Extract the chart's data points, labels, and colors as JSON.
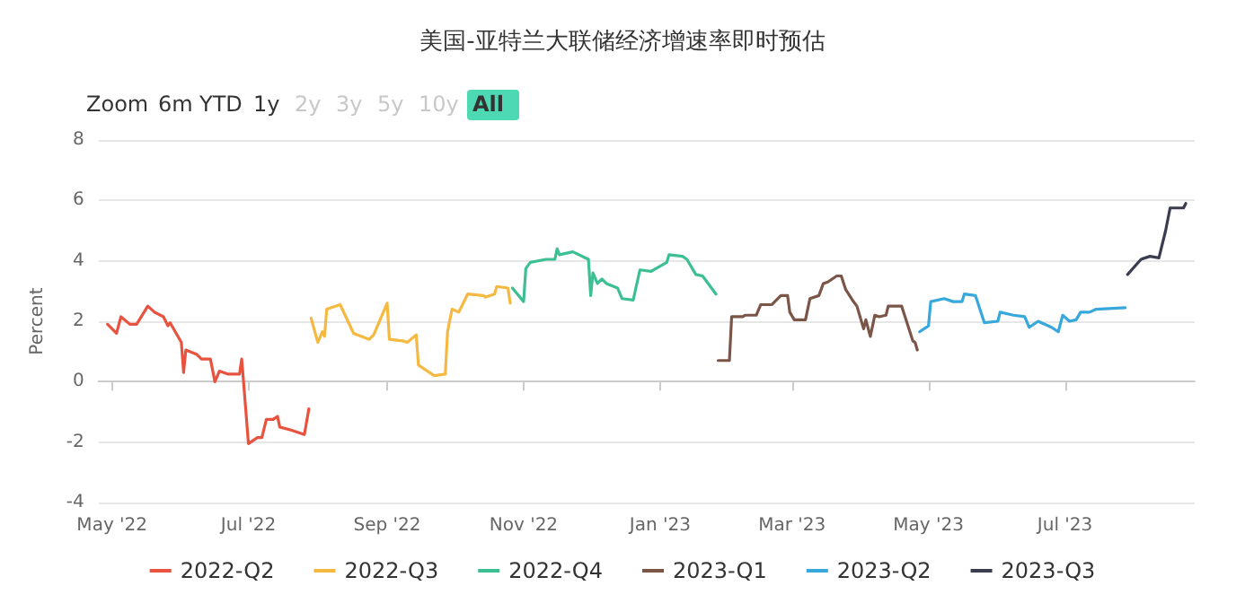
{
  "chart_data": {
    "type": "line",
    "title": "美国-亚特兰大联储经济增速率即时预估",
    "ylabel": "Percent",
    "annotations": [
      "Zoom",
      "6m",
      "YTD",
      "1y",
      "2y",
      "3y",
      "5y",
      "10y",
      "All"
    ],
    "xlim": [
      "2022-04-25",
      "2023-08-28"
    ],
    "xticks": [
      {
        "value": "2022-05-01",
        "label": "May '22"
      },
      {
        "value": "2022-07-01",
        "label": "Jul '22"
      },
      {
        "value": "2022-09-01",
        "label": "Sep '22"
      },
      {
        "value": "2022-11-01",
        "label": "Nov '22"
      },
      {
        "value": "2023-01-01",
        "label": "Jan '23"
      },
      {
        "value": "2023-03-01",
        "label": "Mar '23"
      },
      {
        "value": "2023-05-01",
        "label": "May '23"
      },
      {
        "value": "2023-07-01",
        "label": "Jul '23"
      }
    ],
    "ylim": [
      -4,
      8
    ],
    "yticks": [
      -4,
      -2,
      0,
      2,
      4,
      6,
      8
    ],
    "grid": "y",
    "legend": "bottom",
    "marker": "none",
    "line_style": "solid",
    "series": [
      {
        "name": "2022-Q2",
        "color": "#e8533f",
        "x": [
          "2022-04-29",
          "2022-05-03",
          "2022-05-05",
          "2022-05-09",
          "2022-05-12",
          "2022-05-17",
          "2022-05-20",
          "2022-05-24",
          "2022-05-26",
          "2022-05-27",
          "2022-06-01",
          "2022-06-02",
          "2022-06-03",
          "2022-06-08",
          "2022-06-10",
          "2022-06-14",
          "2022-06-16",
          "2022-06-18",
          "2022-06-22",
          "2022-06-27",
          "2022-06-28",
          "2022-07-01",
          "2022-07-05",
          "2022-07-07",
          "2022-07-09",
          "2022-07-12",
          "2022-07-14",
          "2022-07-15",
          "2022-07-20",
          "2022-07-26",
          "2022-07-28"
        ],
        "values": [
          1.9,
          1.6,
          2.15,
          1.9,
          1.9,
          2.5,
          2.3,
          2.15,
          1.85,
          1.95,
          1.3,
          0.3,
          1.05,
          0.9,
          0.75,
          0.75,
          0.0,
          0.35,
          0.25,
          0.25,
          0.75,
          -2.05,
          -1.85,
          -1.85,
          -1.25,
          -1.25,
          -1.15,
          -1.5,
          -1.6,
          -1.75,
          -0.9
        ]
      },
      {
        "name": "2022-Q3",
        "color": "#f5b942",
        "x": [
          "2022-07-29",
          "2022-08-01",
          "2022-08-03",
          "2022-08-04",
          "2022-08-05",
          "2022-08-11",
          "2022-08-17",
          "2022-08-24",
          "2022-08-26",
          "2022-09-01",
          "2022-09-02",
          "2022-09-08",
          "2022-09-10",
          "2022-09-14",
          "2022-09-15",
          "2022-09-22",
          "2022-09-27",
          "2022-09-28",
          "2022-09-30",
          "2022-10-03",
          "2022-10-07",
          "2022-10-14",
          "2022-10-15",
          "2022-10-19",
          "2022-10-20",
          "2022-10-25",
          "2022-10-26"
        ],
        "values": [
          2.1,
          1.3,
          1.65,
          1.5,
          2.4,
          2.55,
          1.6,
          1.4,
          1.55,
          2.6,
          1.4,
          1.35,
          1.3,
          1.55,
          0.55,
          0.2,
          0.25,
          1.65,
          2.4,
          2.3,
          2.9,
          2.85,
          2.8,
          2.9,
          3.15,
          3.1,
          2.6
        ]
      },
      {
        "name": "2022-Q4",
        "color": "#3dbf94",
        "x": [
          "2022-10-27",
          "2022-11-01",
          "2022-11-02",
          "2022-11-04",
          "2022-11-11",
          "2022-11-15",
          "2022-11-16",
          "2022-11-17",
          "2022-11-23",
          "2022-11-30",
          "2022-12-01",
          "2022-12-02",
          "2022-12-04",
          "2022-12-06",
          "2022-12-08",
          "2022-12-13",
          "2022-12-15",
          "2022-12-20",
          "2022-12-23",
          "2022-12-28",
          "2023-01-04",
          "2023-01-05",
          "2023-01-11",
          "2023-01-13",
          "2023-01-17",
          "2023-01-20",
          "2023-01-26"
        ],
        "values": [
          3.1,
          2.65,
          3.75,
          3.95,
          4.05,
          4.05,
          4.4,
          4.2,
          4.3,
          4.05,
          2.85,
          3.6,
          3.25,
          3.4,
          3.25,
          3.1,
          2.75,
          2.7,
          3.7,
          3.65,
          3.95,
          4.2,
          4.15,
          4.05,
          3.55,
          3.5,
          2.9
        ]
      },
      {
        "name": "2023-Q1",
        "color": "#7a5548",
        "x": [
          "2023-01-27",
          "2023-02-01",
          "2023-02-02",
          "2023-02-07",
          "2023-02-08",
          "2023-02-13",
          "2023-02-15",
          "2023-02-20",
          "2023-02-24",
          "2023-02-27",
          "2023-02-28",
          "2023-03-02",
          "2023-03-07",
          "2023-03-09",
          "2023-03-13",
          "2023-03-15",
          "2023-03-17",
          "2023-03-21",
          "2023-03-23",
          "2023-03-25",
          "2023-03-28",
          "2023-03-30",
          "2023-04-02",
          "2023-04-03",
          "2023-04-05",
          "2023-04-07",
          "2023-04-09",
          "2023-04-12",
          "2023-04-13",
          "2023-04-19",
          "2023-04-24",
          "2023-04-25",
          "2023-04-26"
        ],
        "values": [
          0.7,
          0.7,
          2.15,
          2.15,
          2.2,
          2.2,
          2.55,
          2.55,
          2.85,
          2.85,
          2.3,
          2.05,
          2.05,
          2.75,
          2.85,
          3.25,
          3.3,
          3.5,
          3.5,
          3.05,
          2.7,
          2.5,
          1.75,
          2.05,
          1.5,
          2.2,
          2.15,
          2.2,
          2.5,
          2.5,
          1.35,
          1.3,
          1.05
        ]
      },
      {
        "name": "2023-Q2",
        "color": "#38a8dc",
        "x": [
          "2023-04-27",
          "2023-05-01",
          "2023-05-02",
          "2023-05-08",
          "2023-05-12",
          "2023-05-16",
          "2023-05-17",
          "2023-05-22",
          "2023-05-26",
          "2023-06-01",
          "2023-06-02",
          "2023-06-08",
          "2023-06-13",
          "2023-06-15",
          "2023-06-19",
          "2023-06-25",
          "2023-06-28",
          "2023-06-30",
          "2023-07-03",
          "2023-07-06",
          "2023-07-08",
          "2023-07-12",
          "2023-07-15",
          "2023-07-28"
        ],
        "values": [
          1.65,
          1.85,
          2.65,
          2.75,
          2.65,
          2.65,
          2.9,
          2.85,
          1.95,
          2.0,
          2.3,
          2.2,
          2.15,
          1.8,
          2.0,
          1.8,
          1.65,
          2.2,
          2.0,
          2.05,
          2.3,
          2.3,
          2.4,
          2.45
        ]
      },
      {
        "name": "2023-Q3",
        "color": "#3a3d4f",
        "x": [
          "2023-07-29",
          "2023-08-04",
          "2023-08-08",
          "2023-08-12",
          "2023-08-15",
          "2023-08-17",
          "2023-08-23",
          "2023-08-24"
        ],
        "values": [
          3.55,
          4.05,
          4.15,
          4.1,
          5.0,
          5.75,
          5.75,
          5.9
        ]
      }
    ]
  }
}
